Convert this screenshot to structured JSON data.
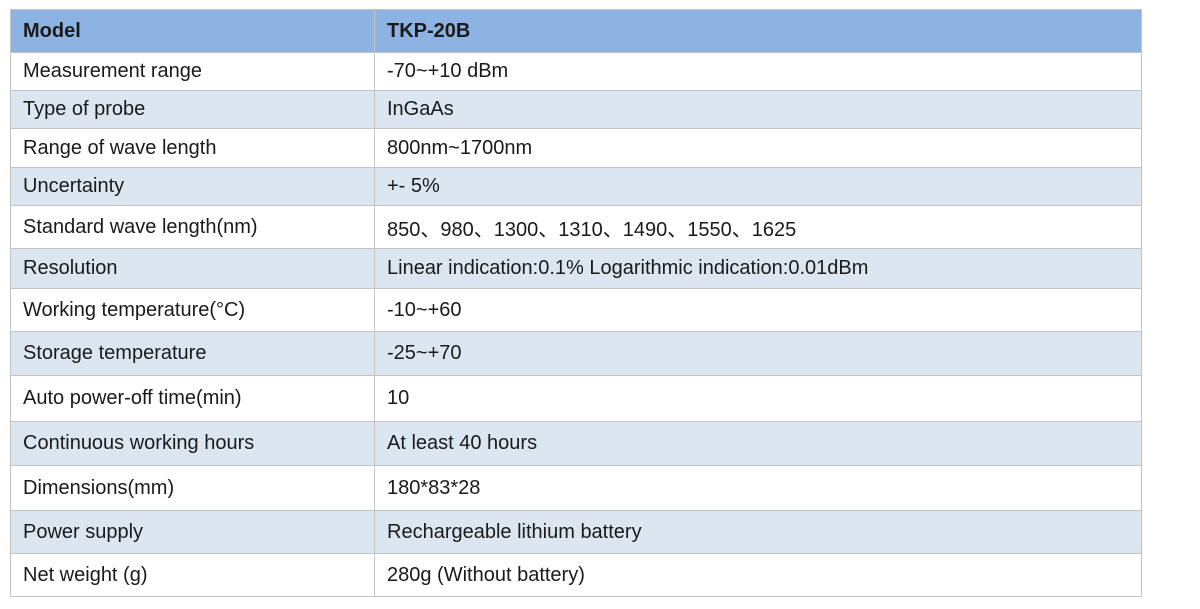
{
  "header": {
    "label": "Model",
    "value": "TKP-20B"
  },
  "rows": [
    {
      "label": "Measurement range",
      "value": "-70~+10 dBm"
    },
    {
      "label": "Type of probe",
      "value": "InGaAs"
    },
    {
      "label": "Range of wave length",
      "value": "800nm~1700nm"
    },
    {
      "label": "Uncertainty",
      "value": "+- 5%"
    },
    {
      "label": "Standard wave length(nm)",
      "value": "850、980、1300、1310、1490、1550、1625"
    },
    {
      "label": "Resolution",
      "value": "Linear indication:0.1% Logarithmic indication:0.01dBm"
    },
    {
      "label": "Working temperature(°C)",
      "value": "-10~+60"
    },
    {
      "label": "Storage temperature",
      "value": "-25~+70"
    },
    {
      "label": "Auto power-off time(min)",
      "value": "10"
    },
    {
      "label": "Continuous working hours",
      "value": "At least 40 hours"
    },
    {
      "label": "Dimensions(mm)",
      "value": "180*83*28"
    },
    {
      "label": "Power supply",
      "value": "Rechargeable lithium battery"
    },
    {
      "label": "Net weight (g)",
      "value": "280g (Without battery)"
    }
  ],
  "colors": {
    "header_bg": "#8db3e2",
    "stripe_bg": "#dce6f1",
    "border": "#c4c4c4"
  }
}
